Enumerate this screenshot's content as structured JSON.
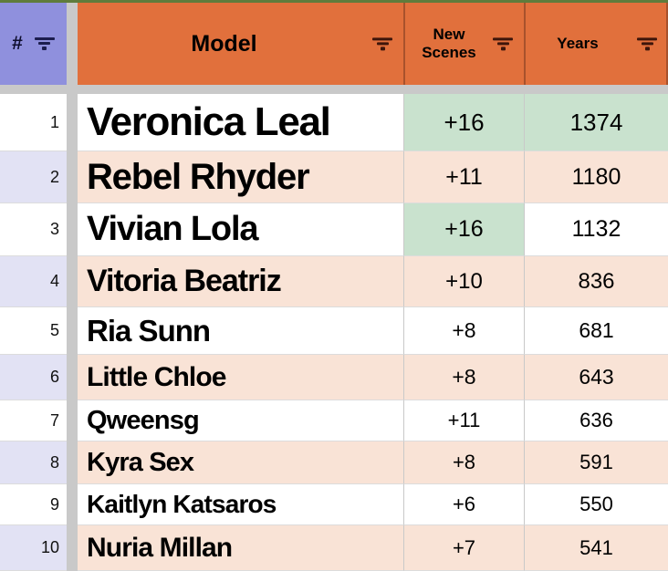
{
  "table": {
    "columns": [
      {
        "id": "rank",
        "label": "#"
      },
      {
        "id": "model",
        "label": "Model"
      },
      {
        "id": "new_scenes",
        "label": "New Scenes"
      },
      {
        "id": "years",
        "label": "Years"
      }
    ],
    "rows": [
      {
        "rank": "1",
        "model": "Veronica Leal",
        "new_scenes": "+16",
        "years": "1374",
        "new_scenes_green": true,
        "years_green": true
      },
      {
        "rank": "2",
        "model": "Rebel Rhyder",
        "new_scenes": "+11",
        "years": "1180",
        "new_scenes_green": false,
        "years_green": false
      },
      {
        "rank": "3",
        "model": "Vivian Lola",
        "new_scenes": "+16",
        "years": "1132",
        "new_scenes_green": true,
        "years_green": false
      },
      {
        "rank": "4",
        "model": "Vitoria Beatriz",
        "new_scenes": "+10",
        "years": "836",
        "new_scenes_green": false,
        "years_green": false
      },
      {
        "rank": "5",
        "model": "Ria Sunn",
        "new_scenes": "+8",
        "years": "681",
        "new_scenes_green": false,
        "years_green": false
      },
      {
        "rank": "6",
        "model": "Little Chloe",
        "new_scenes": "+8",
        "years": "643",
        "new_scenes_green": false,
        "years_green": false
      },
      {
        "rank": "7",
        "model": "Qweensg",
        "new_scenes": "+11",
        "years": "636",
        "new_scenes_green": false,
        "years_green": false
      },
      {
        "rank": "8",
        "model": "Kyra Sex",
        "new_scenes": "+8",
        "years": "591",
        "new_scenes_green": false,
        "years_green": false
      },
      {
        "rank": "9",
        "model": "Kaitlyn Katsaros",
        "new_scenes": "+6",
        "years": "550",
        "new_scenes_green": false,
        "years_green": false
      },
      {
        "rank": "10",
        "model": "Nuria Millan",
        "new_scenes": "+7",
        "years": "541",
        "new_scenes_green": false,
        "years_green": false
      }
    ]
  },
  "icons": {
    "filter": "three-bar-filter"
  },
  "colors": {
    "header_orange": "#e1703c",
    "header_purple": "#8f90dd",
    "header_divider": "#a8522c",
    "top_strip": "#5f7c3c",
    "gap_gray": "#c9c9c9",
    "row_peach": "#f9e3d6",
    "rank_lavender": "#e2e2f4",
    "highlight_green": "#c9e2ce"
  }
}
